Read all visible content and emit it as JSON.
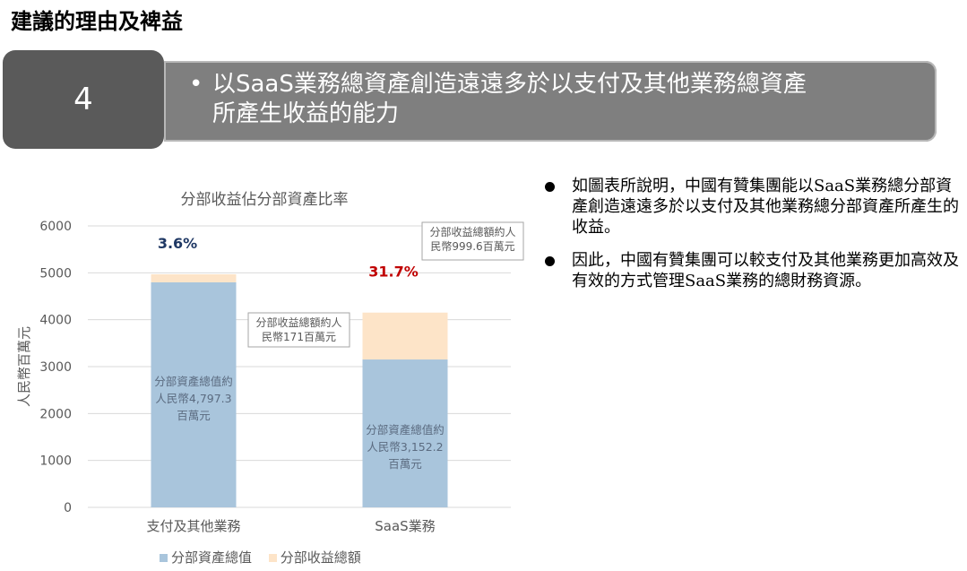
{
  "header": {
    "title": "建議的理由及裨益",
    "number": "4",
    "banner_bullet": "•",
    "banner_line1": "以SaaS業務總資產創造遠遠多於以支付及其他業務總資產",
    "banner_line2": "所產生收益的能力"
  },
  "bullets": [
    "如圖表所說明，中國有贊集團能以SaaS業務總分部資產創造遠遠多於以支付及其他業務總分部資產所產生的收益。",
    "因此，中國有贊集團可以較支付及其他業務更加高效及有效的方式管理SaaS業務的總財務資源。"
  ],
  "chart_data": {
    "type": "bar",
    "stacked": true,
    "title": "分部收益佔分部資產比率",
    "ylabel": "人民幣百萬元",
    "ylim": [
      0,
      6000
    ],
    "yticks": [
      "0",
      "1000",
      "2000",
      "3000",
      "4000",
      "5000",
      "6000"
    ],
    "grid": true,
    "legend_position": "bottom",
    "categories": [
      "支付及其他業務",
      "SaaS業務"
    ],
    "series": [
      {
        "name": "分部資產總值",
        "values": [
          4797.3,
          3152.2
        ],
        "color": "#a9c5dc"
      },
      {
        "name": "分部收益總額",
        "values": [
          171,
          999.6
        ],
        "color": "#fde4c8"
      }
    ],
    "ratio_labels": [
      {
        "text": "3.6%",
        "color": "#1f3864"
      },
      {
        "text": "31.7%",
        "color": "#c00000"
      }
    ],
    "asset_labels": [
      [
        "分部資產總值約",
        "人民幣4,797.3",
        "百萬元"
      ],
      [
        "分部資產總值約",
        "人民幣3,152.2",
        "百萬元"
      ]
    ],
    "revenue_callouts": [
      [
        "分部收益總額約人",
        "民幣171百萬元"
      ],
      [
        "分部收益總額約人",
        "民幣999.6百萬元"
      ]
    ]
  }
}
